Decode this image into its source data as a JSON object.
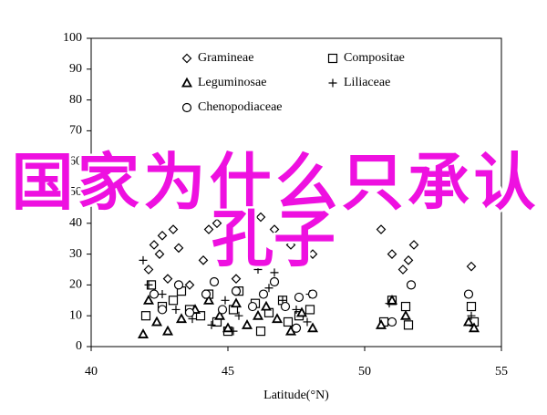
{
  "chart_data": {
    "type": "scatter",
    "x_label": "Latitude(°N)",
    "xlim": [
      40,
      55
    ],
    "xticks": [
      40,
      45,
      50,
      55
    ],
    "ylim": [
      0,
      100
    ],
    "yticks": [
      0,
      10,
      20,
      30,
      40,
      50,
      60,
      70,
      80,
      90,
      100
    ],
    "legend": "top",
    "annotation": [
      "国家为什么只承认",
      "孔子"
    ],
    "series": [
      {
        "name": "Gramineae",
        "color": "#000000",
        "marker": "diamond",
        "x": [
          42.3,
          42.6,
          43,
          42.1,
          42.5,
          43.2,
          44.1,
          44.3,
          44.6,
          45.1,
          45.8,
          46.2,
          46.7,
          47.3,
          47.8,
          48.1,
          50.6,
          51,
          51.4,
          51.6,
          51.8,
          53.9,
          42.8,
          43.6,
          45.3
        ],
        "values": [
          33,
          36,
          38,
          25,
          30,
          32,
          28,
          38,
          40,
          35,
          45,
          42,
          38,
          33,
          35,
          30,
          38,
          30,
          25,
          28,
          33,
          26,
          22,
          20,
          22
        ]
      },
      {
        "name": "Compositae",
        "color": "#000000",
        "marker": "square",
        "x": [
          42,
          42.2,
          42.6,
          43,
          43.3,
          43.6,
          44,
          44.3,
          44.6,
          45,
          45.2,
          45.4,
          46,
          46.2,
          46.5,
          47,
          47.2,
          47.6,
          48,
          50.7,
          51,
          51.5,
          51.6,
          53.9,
          54
        ],
        "values": [
          10,
          20,
          13,
          15,
          18,
          12,
          10,
          17,
          8,
          5,
          12,
          18,
          14,
          5,
          11,
          15,
          8,
          10,
          12,
          8,
          15,
          13,
          7,
          13,
          8
        ]
      },
      {
        "name": "Leguminosae",
        "color": "#000000",
        "marker": "triangle",
        "x": [
          41.9,
          42.1,
          42.4,
          42.8,
          43.3,
          43.8,
          44.3,
          44.7,
          45,
          45.3,
          45.7,
          46.1,
          46.4,
          46.8,
          47.3,
          47.7,
          48.1,
          50.6,
          51,
          51.5,
          53.8,
          54
        ],
        "values": [
          4,
          15,
          8,
          5,
          9,
          12,
          15,
          10,
          6,
          14,
          7,
          10,
          13,
          9,
          5,
          11,
          6,
          7,
          15,
          10,
          8,
          6
        ]
      },
      {
        "name": "Liliaceae",
        "color": "#000000",
        "marker": "plus",
        "x": [
          41.9,
          42.1,
          42.6,
          43.1,
          43.7,
          44.4,
          44.9,
          45.4,
          46.1,
          46.5,
          47,
          47.5,
          47.9,
          48,
          50.9,
          53.9,
          45.2,
          46.7
        ],
        "values": [
          28,
          20,
          17,
          12,
          9,
          7,
          15,
          10,
          25,
          19,
          15,
          12,
          8,
          17,
          14,
          10,
          5,
          24
        ]
      },
      {
        "name": "Chenopodiaceae",
        "color": "#000000",
        "marker": "circle",
        "x": [
          42.3,
          42.6,
          43.2,
          43.6,
          44.2,
          44.5,
          44.8,
          45.3,
          45.9,
          46.3,
          46.7,
          47.1,
          47.6,
          48.1,
          51,
          51.7,
          53.8,
          47.5
        ],
        "values": [
          17,
          12,
          20,
          11,
          17,
          21,
          12,
          18,
          13,
          17,
          21,
          13,
          16,
          17,
          8,
          20,
          17,
          6
        ]
      }
    ]
  }
}
